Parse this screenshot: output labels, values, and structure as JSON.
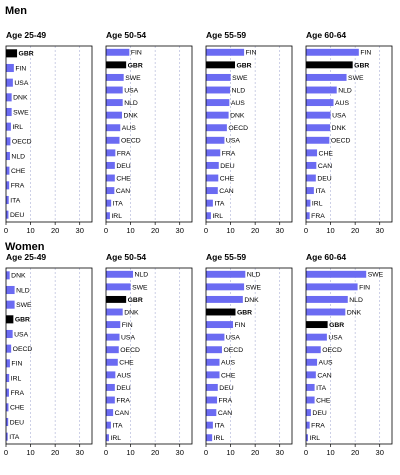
{
  "colors": {
    "bar": "#6b6bf2",
    "highlight": "#000000"
  },
  "highlight_country": "GBR",
  "sections": [
    {
      "title": "Men"
    },
    {
      "title": "Women"
    }
  ],
  "chart_data": [
    {
      "type": "bar",
      "orientation": "horizontal",
      "section": "Men",
      "title": "Age 25-49",
      "xlim": [
        0,
        35
      ],
      "xticks": [
        0,
        10,
        20,
        30
      ],
      "categories": [
        "GBR",
        "FIN",
        "USA",
        "DNK",
        "SWE",
        "IRL",
        "OECD",
        "NLD",
        "CHE",
        "FRA",
        "ITA",
        "DEU"
      ],
      "values": [
        4.5,
        3.2,
        2.8,
        2.3,
        2.3,
        2.0,
        1.8,
        1.6,
        1.4,
        1.3,
        1.1,
        1.0
      ]
    },
    {
      "type": "bar",
      "orientation": "horizontal",
      "section": "Men",
      "title": "Age 50-54",
      "xlim": [
        0,
        35
      ],
      "xticks": [
        0,
        10,
        20,
        30
      ],
      "categories": [
        "FIN",
        "GBR",
        "SWE",
        "USA",
        "NLD",
        "DNK",
        "AUS",
        "OECD",
        "FRA",
        "DEU",
        "CHE",
        "CAN",
        "ITA",
        "IRL"
      ],
      "values": [
        9.5,
        8.2,
        7.2,
        6.8,
        6.8,
        6.5,
        5.8,
        5.5,
        3.8,
        3.6,
        3.6,
        3.4,
        2.1,
        1.6
      ]
    },
    {
      "type": "bar",
      "orientation": "horizontal",
      "section": "Men",
      "title": "Age 55-59",
      "xlim": [
        0,
        35
      ],
      "xticks": [
        0,
        10,
        20,
        30
      ],
      "categories": [
        "FIN",
        "GBR",
        "SWE",
        "NLD",
        "AUS",
        "DNK",
        "OECD",
        "USA",
        "FRA",
        "DEU",
        "CHE",
        "CAN",
        "ITA",
        "IRL"
      ],
      "values": [
        15.5,
        11.8,
        10.0,
        9.8,
        9.5,
        9.2,
        8.5,
        7.5,
        5.8,
        5.2,
        5.0,
        4.8,
        2.8,
        2.0
      ]
    },
    {
      "type": "bar",
      "orientation": "horizontal",
      "section": "Men",
      "title": "Age 60-64",
      "xlim": [
        0,
        35
      ],
      "xticks": [
        0,
        10,
        20,
        30
      ],
      "categories": [
        "FIN",
        "GBR",
        "SWE",
        "NLD",
        "AUS",
        "USA",
        "DNK",
        "OECD",
        "CHE",
        "CAN",
        "DEU",
        "ITA",
        "IRL",
        "FRA"
      ],
      "values": [
        21.5,
        19.0,
        16.5,
        12.5,
        11.2,
        10.0,
        9.8,
        9.5,
        4.5,
        4.2,
        4.0,
        3.2,
        1.8,
        1.5
      ]
    },
    {
      "type": "bar",
      "orientation": "horizontal",
      "section": "Women",
      "title": "Age 25-49",
      "xlim": [
        0,
        35
      ],
      "xticks": [
        0,
        10,
        20,
        30
      ],
      "categories": [
        "DNK",
        "NLD",
        "SWE",
        "GBR",
        "USA",
        "OECD",
        "FIN",
        "IRL",
        "FRA",
        "CHE",
        "DEU",
        "ITA"
      ],
      "values": [
        1.5,
        3.5,
        3.5,
        3.0,
        2.7,
        2.1,
        1.6,
        1.3,
        1.2,
        1.0,
        0.9,
        0.7
      ]
    },
    {
      "type": "bar",
      "orientation": "horizontal",
      "section": "Women",
      "title": "Age 50-54",
      "xlim": [
        0,
        35
      ],
      "xticks": [
        0,
        10,
        20,
        30
      ],
      "categories": [
        "NLD",
        "SWE",
        "GBR",
        "DNK",
        "FIN",
        "USA",
        "OECD",
        "CHE",
        "AUS",
        "DEU",
        "FRA",
        "CAN",
        "ITA",
        "IRL"
      ],
      "values": [
        11.0,
        10.0,
        8.2,
        6.8,
        5.8,
        5.5,
        5.2,
        4.8,
        3.8,
        3.6,
        3.6,
        2.9,
        2.0,
        1.2
      ]
    },
    {
      "type": "bar",
      "orientation": "horizontal",
      "section": "Women",
      "title": "Age 55-59",
      "xlim": [
        0,
        35
      ],
      "xticks": [
        0,
        10,
        20,
        30
      ],
      "categories": [
        "NLD",
        "SWE",
        "DNK",
        "GBR",
        "FIN",
        "USA",
        "OECD",
        "AUS",
        "CHE",
        "DEU",
        "FRA",
        "CAN",
        "ITA",
        "IRL"
      ],
      "values": [
        16.0,
        15.5,
        15.0,
        12.0,
        11.0,
        7.5,
        6.5,
        5.5,
        5.5,
        4.8,
        4.5,
        4.2,
        2.8,
        2.5
      ]
    },
    {
      "type": "bar",
      "orientation": "horizontal",
      "section": "Women",
      "title": "Age 60-64",
      "xlim": [
        0,
        35
      ],
      "xticks": [
        0,
        10,
        20,
        30
      ],
      "categories": [
        "SWE",
        "FIN",
        "NLD",
        "DNK",
        "GBR",
        "USA",
        "OECD",
        "AUS",
        "CAN",
        "ITA",
        "CHE",
        "DEU",
        "FRA",
        "IRL"
      ],
      "values": [
        24.5,
        21.0,
        17.0,
        16.0,
        8.8,
        8.5,
        6.0,
        4.5,
        4.0,
        3.5,
        3.5,
        2.0,
        1.5,
        0.8
      ]
    }
  ]
}
